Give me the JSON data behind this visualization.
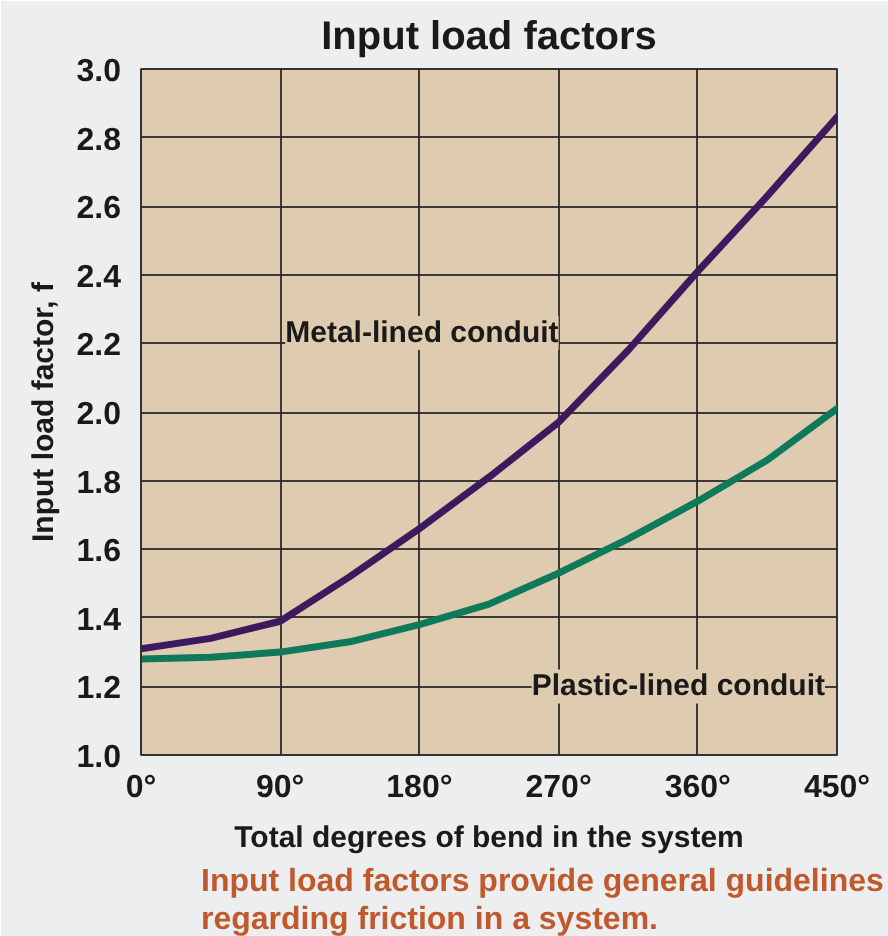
{
  "chart_data": {
    "type": "line",
    "title": "Input load factors",
    "xlabel": "Total degrees of bend in the system",
    "ylabel": "Input load factor, f",
    "x": [
      0,
      45,
      90,
      135,
      180,
      225,
      270,
      315,
      360,
      405,
      450
    ],
    "series": [
      {
        "name": "Metal-lined conduit",
        "color": "#3d1a5e",
        "values": [
          1.31,
          1.34,
          1.39,
          1.52,
          1.66,
          1.81,
          1.97,
          2.18,
          2.41,
          2.63,
          2.86
        ]
      },
      {
        "name": "Plastic-lined conduit",
        "color": "#0f7a5a",
        "values": [
          1.28,
          1.285,
          1.3,
          1.33,
          1.38,
          1.44,
          1.53,
          1.63,
          1.74,
          1.86,
          2.01
        ]
      }
    ],
    "xlim": [
      0,
      450
    ],
    "ylim": [
      1.0,
      3.0
    ],
    "xticks": [
      {
        "value": 0,
        "label": "0°"
      },
      {
        "value": 90,
        "label": "90°"
      },
      {
        "value": 180,
        "label": "180°"
      },
      {
        "value": 270,
        "label": "270°"
      },
      {
        "value": 360,
        "label": "360°"
      },
      {
        "value": 450,
        "label": "450°"
      }
    ],
    "yticks": [
      {
        "value": 1.0,
        "label": "1.0"
      },
      1.2,
      1.4,
      1.6,
      1.8,
      {
        "value": 2.0,
        "label": "2.0"
      },
      2.2,
      2.4,
      2.6,
      2.8,
      {
        "value": 3.0,
        "label": "3.0"
      }
    ],
    "grid": true,
    "marker": "none",
    "line_style": "solid",
    "annotations": [
      "Input load factors provide general guidelines regarding friction in a system."
    ]
  }
}
